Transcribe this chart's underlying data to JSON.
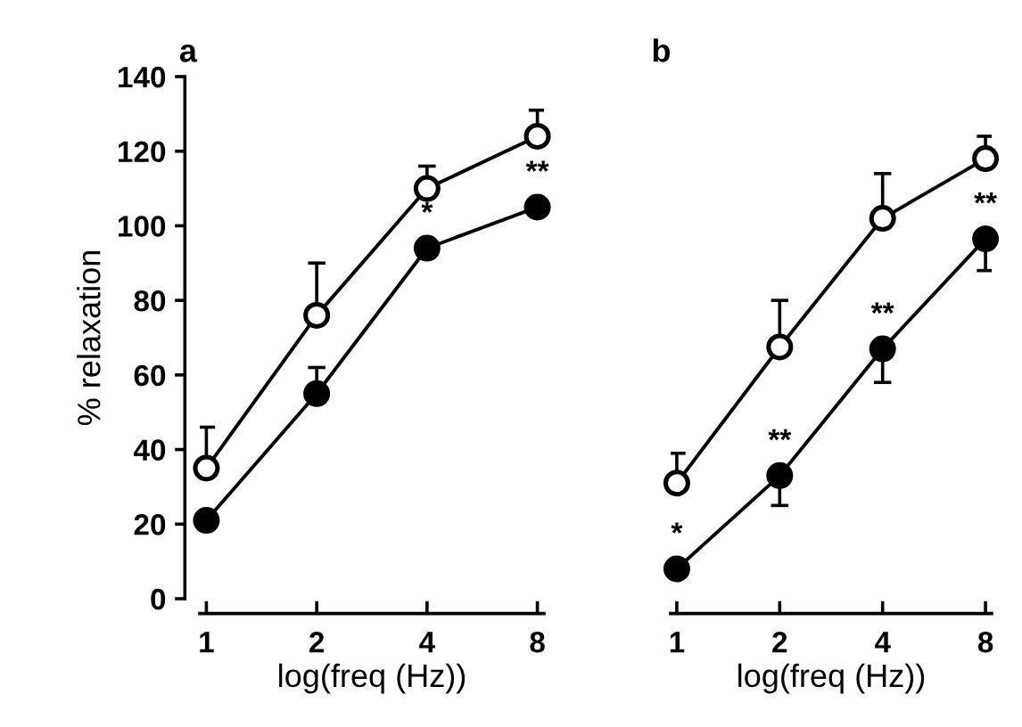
{
  "chart_data": [
    {
      "type": "line",
      "title": "a",
      "xlabel": "log(freq (Hz))",
      "ylabel": "% relaxation",
      "categories": [
        "1",
        "2",
        "4",
        "8"
      ],
      "ylim": [
        0,
        140
      ],
      "yticks": [
        0,
        20,
        40,
        60,
        80,
        100,
        120,
        140
      ],
      "marker": "circle",
      "grid": false,
      "legend": false,
      "series": [
        {
          "color": "#ffffff",
          "values": [
            35,
            76,
            110,
            124
          ],
          "errors": [
            [
              35,
              46
            ],
            [
              76,
              90
            ],
            [
              110,
              116
            ],
            [
              124,
              131
            ]
          ]
        },
        {
          "color": "#000000",
          "values": [
            21,
            55,
            94,
            105
          ],
          "errors": [
            null,
            [
              55,
              62
            ],
            null,
            null
          ]
        }
      ],
      "annotations": [
        {
          "text": "*",
          "x": "4",
          "y": 94
        },
        {
          "text": "**",
          "x": "8",
          "y": 105
        }
      ]
    },
    {
      "type": "line",
      "title": "b",
      "xlabel": "log(freq (Hz))",
      "categories": [
        "1",
        "2",
        "4",
        "8"
      ],
      "ylim": [
        0,
        140
      ],
      "tick_labels": "x",
      "marker": "circle",
      "grid": false,
      "legend": false,
      "series": [
        {
          "color": "#ffffff",
          "values": [
            31,
            67.5,
            102,
            118
          ],
          "errors": [
            [
              31,
              39
            ],
            [
              67.5,
              80
            ],
            [
              102,
              114
            ],
            [
              118,
              124
            ]
          ]
        },
        {
          "color": "#000000",
          "values": [
            8,
            33,
            67,
            96.5
          ],
          "errors": [
            null,
            [
              25,
              33
            ],
            [
              58,
              67
            ],
            [
              88,
              96.5
            ]
          ]
        }
      ],
      "annotations": [
        {
          "text": "*",
          "x": "1",
          "y": 8
        },
        {
          "text": "**",
          "x": "2",
          "y": 33
        },
        {
          "text": "**",
          "x": "4",
          "y": 67
        },
        {
          "text": "**",
          "x": "8",
          "y": 96.5
        }
      ]
    }
  ]
}
